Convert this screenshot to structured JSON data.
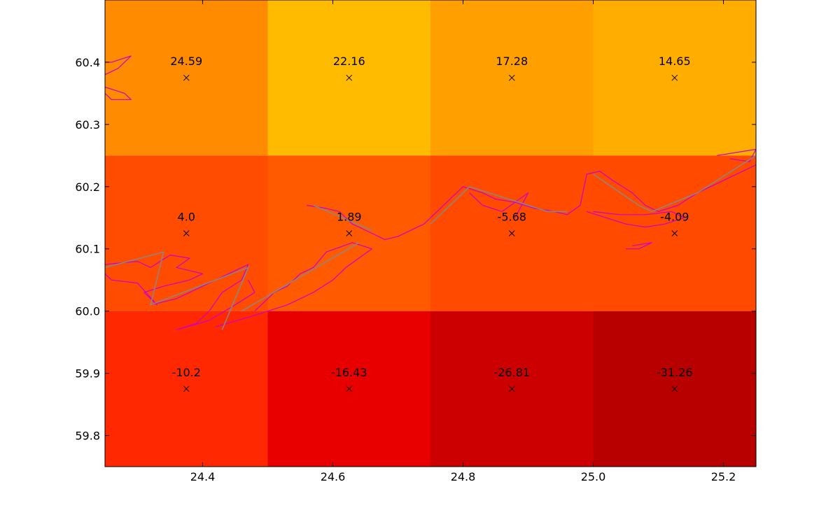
{
  "chart_data": {
    "type": "heatmap",
    "title": "",
    "xlabel": "",
    "ylabel": "",
    "xlim": [
      24.25,
      25.25
    ],
    "ylim": [
      59.75,
      60.5
    ],
    "x_edges": [
      24.25,
      24.5,
      24.75,
      25.0,
      25.25
    ],
    "y_edges": [
      59.75,
      60.0,
      60.25,
      60.5
    ],
    "x_ticks": [
      24.4,
      24.6,
      24.8,
      25.0,
      25.2
    ],
    "x_tick_labels": [
      "24.4",
      "24.6",
      "24.8",
      "25.0",
      "25.2"
    ],
    "y_ticks": [
      59.8,
      59.9,
      60.0,
      60.1,
      60.2,
      60.3,
      60.4
    ],
    "y_tick_labels": [
      "59.8",
      "59.9",
      "60.0",
      "60.1",
      "60.2",
      "60.3",
      "60.4"
    ],
    "cells": [
      {
        "x": 24.375,
        "y": 60.375,
        "value": 24.59,
        "label": "24.59",
        "color": "#ff8c00"
      },
      {
        "x": 24.625,
        "y": 60.375,
        "value": 22.16,
        "label": "22.16",
        "color": "#ffbb00"
      },
      {
        "x": 24.875,
        "y": 60.375,
        "value": 17.28,
        "label": "17.28",
        "color": "#ffa000"
      },
      {
        "x": 25.125,
        "y": 60.375,
        "value": 14.65,
        "label": "14.65",
        "color": "#ffae00"
      },
      {
        "x": 24.375,
        "y": 60.125,
        "value": 4.0,
        "label": "4.0",
        "color": "#ff4c00"
      },
      {
        "x": 24.625,
        "y": 60.125,
        "value": 1.89,
        "label": "1.89",
        "color": "#ff5a00"
      },
      {
        "x": 24.875,
        "y": 60.125,
        "value": -5.68,
        "label": "-5.68",
        "color": "#ff4a00"
      },
      {
        "x": 25.125,
        "y": 60.125,
        "value": -4.09,
        "label": "-4.09",
        "color": "#ff4a00"
      },
      {
        "x": 24.375,
        "y": 59.875,
        "value": -10.2,
        "label": "-10.2",
        "color": "#ff2800"
      },
      {
        "x": 24.625,
        "y": 59.875,
        "value": -16.43,
        "label": "-16.43",
        "color": "#e80000"
      },
      {
        "x": 24.875,
        "y": 59.875,
        "value": -26.81,
        "label": "-26.81",
        "color": "#cc0000"
      },
      {
        "x": 25.125,
        "y": 59.875,
        "value": -31.26,
        "label": "-31.26",
        "color": "#b80000"
      }
    ],
    "marker": "x",
    "marker_color": "#000000",
    "coastline_color": "#cc00cc",
    "connector_color": "#888888",
    "coastline": [
      [
        [
          24.25,
          60.38
        ],
        [
          24.27,
          60.39
        ],
        [
          24.28,
          60.4
        ],
        [
          24.29,
          60.41
        ],
        [
          24.26,
          60.4
        ],
        [
          24.25,
          60.4
        ]
      ],
      [
        [
          24.25,
          60.36
        ],
        [
          24.28,
          60.35
        ],
        [
          24.29,
          60.34
        ],
        [
          24.26,
          60.34
        ],
        [
          24.25,
          60.35
        ]
      ],
      [
        [
          24.25,
          60.075
        ],
        [
          24.3,
          60.08
        ],
        [
          24.32,
          60.07
        ],
        [
          24.35,
          60.09
        ],
        [
          24.38,
          60.085
        ],
        [
          24.36,
          60.07
        ],
        [
          24.4,
          60.06
        ],
        [
          24.38,
          60.05
        ],
        [
          24.34,
          60.04
        ],
        [
          24.31,
          60.03
        ],
        [
          24.33,
          60.01
        ],
        [
          24.3,
          60.045
        ],
        [
          24.26,
          60.05
        ],
        [
          24.25,
          60.06
        ]
      ],
      [
        [
          24.32,
          60.01
        ],
        [
          24.36,
          60.02
        ],
        [
          24.4,
          60.04
        ],
        [
          24.44,
          60.06
        ],
        [
          24.47,
          60.075
        ],
        [
          24.46,
          60.05
        ],
        [
          24.43,
          60.03
        ],
        [
          24.41,
          60.0
        ],
        [
          24.39,
          59.98
        ],
        [
          24.36,
          59.97
        ],
        [
          24.41,
          59.985
        ],
        [
          24.45,
          60.01
        ],
        [
          24.48,
          60.03
        ],
        [
          24.47,
          60.05
        ]
      ],
      [
        [
          24.42,
          59.975
        ],
        [
          24.47,
          59.99
        ],
        [
          24.5,
          60.0
        ],
        [
          24.53,
          60.01
        ],
        [
          24.57,
          60.03
        ],
        [
          24.6,
          60.05
        ],
        [
          24.62,
          60.07
        ],
        [
          24.66,
          60.1
        ],
        [
          24.63,
          60.11
        ],
        [
          24.59,
          60.095
        ],
        [
          24.57,
          60.07
        ],
        [
          24.55,
          60.06
        ],
        [
          24.53,
          60.04
        ],
        [
          24.51,
          60.03
        ],
        [
          24.48,
          60.0
        ]
      ],
      [
        [
          24.56,
          60.17
        ],
        [
          24.59,
          60.165
        ],
        [
          24.61,
          60.16
        ],
        [
          24.63,
          60.14
        ],
        [
          24.66,
          60.125
        ],
        [
          24.68,
          60.115
        ],
        [
          24.7,
          60.12
        ],
        [
          24.72,
          60.13
        ],
        [
          24.74,
          60.14
        ],
        [
          24.76,
          60.16
        ],
        [
          24.78,
          60.18
        ],
        [
          24.8,
          60.2
        ],
        [
          24.83,
          60.19
        ],
        [
          24.85,
          60.18
        ],
        [
          24.88,
          60.175
        ],
        [
          24.91,
          60.165
        ],
        [
          24.94,
          60.16
        ],
        [
          24.96,
          60.155
        ],
        [
          24.98,
          60.17
        ],
        [
          24.99,
          60.22
        ],
        [
          25.01,
          60.225
        ],
        [
          25.03,
          60.21
        ],
        [
          25.06,
          60.19
        ],
        [
          25.08,
          60.17
        ],
        [
          25.1,
          60.16
        ],
        [
          25.13,
          60.17
        ],
        [
          25.16,
          60.19
        ],
        [
          25.19,
          60.205
        ],
        [
          25.22,
          60.22
        ],
        [
          25.25,
          60.235
        ]
      ],
      [
        [
          24.99,
          60.16
        ],
        [
          25.02,
          60.15
        ],
        [
          25.05,
          60.14
        ],
        [
          25.08,
          60.135
        ],
        [
          25.11,
          60.14
        ],
        [
          25.14,
          60.15
        ],
        [
          25.12,
          60.16
        ],
        [
          25.08,
          60.155
        ],
        [
          25.04,
          60.155
        ],
        [
          25.0,
          60.16
        ]
      ],
      [
        [
          25.05,
          60.1
        ],
        [
          25.07,
          60.1
        ],
        [
          25.09,
          60.11
        ],
        [
          25.06,
          60.105
        ]
      ],
      [
        [
          25.19,
          60.25
        ],
        [
          25.22,
          60.255
        ],
        [
          25.25,
          60.26
        ],
        [
          25.24,
          60.24
        ],
        [
          25.21,
          60.245
        ]
      ],
      [
        [
          24.88,
          60.15
        ],
        [
          24.9,
          60.19
        ],
        [
          24.86,
          60.16
        ],
        [
          24.83,
          60.17
        ],
        [
          24.81,
          60.19
        ]
      ]
    ],
    "connectors": [
      [
        [
          24.25,
          60.07
        ],
        [
          24.34,
          60.095
        ]
      ],
      [
        [
          24.34,
          60.095
        ],
        [
          24.32,
          60.01
        ],
        [
          24.47,
          60.07
        ],
        [
          24.43,
          59.97
        ]
      ],
      [
        [
          24.46,
          60.0
        ],
        [
          24.64,
          60.11
        ]
      ],
      [
        [
          24.57,
          60.17
        ],
        [
          24.66,
          60.13
        ]
      ],
      [
        [
          24.75,
          60.14
        ],
        [
          24.81,
          60.2
        ]
      ],
      [
        [
          24.81,
          60.2
        ],
        [
          24.93,
          60.16
        ],
        [
          24.96,
          60.16
        ]
      ],
      [
        [
          25.0,
          60.22
        ],
        [
          25.07,
          60.17
        ],
        [
          25.09,
          60.16
        ]
      ],
      [
        [
          25.09,
          60.16
        ],
        [
          25.16,
          60.19
        ],
        [
          25.25,
          60.25
        ]
      ]
    ]
  }
}
